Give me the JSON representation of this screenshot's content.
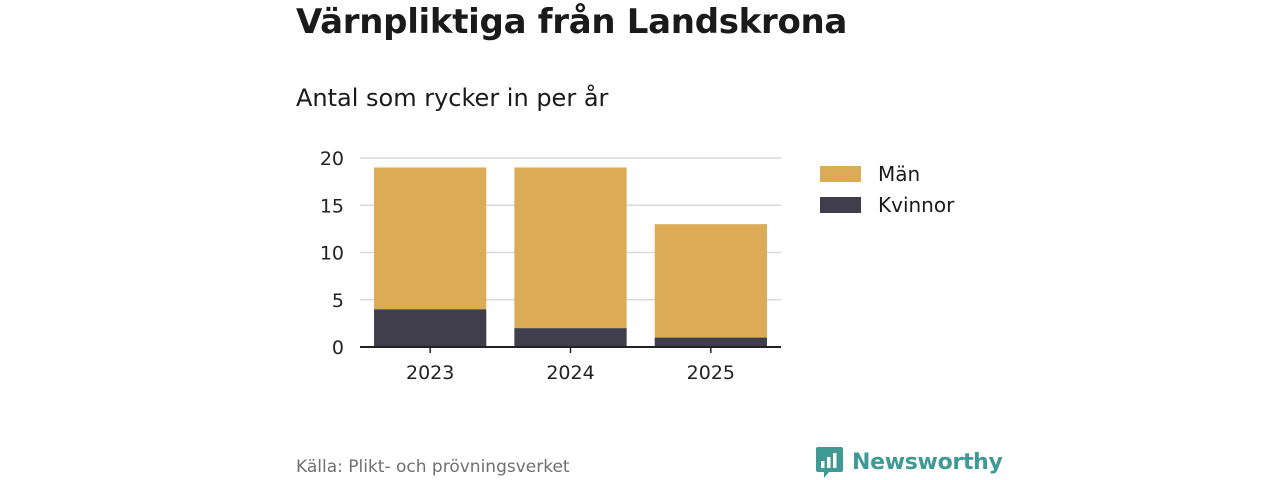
{
  "title": "Värnpliktiga från Landskrona",
  "subtitle": "Antal som rycker in per år",
  "source": "Källa: Plikt- och prövningsverket",
  "brand": "Newsworthy",
  "colors": {
    "man": "#dbab57",
    "kvinnor": "#403e4c",
    "grid": "#d9d9d9",
    "axis": "#222222",
    "brand": "#3f9a96"
  },
  "icons": {
    "brand_logo": "bar-chart-speech-bubble-icon"
  },
  "chart_data": {
    "type": "bar",
    "stacked": true,
    "categories": [
      "2023",
      "2024",
      "2025"
    ],
    "series": [
      {
        "name": "Kvinnor",
        "values": [
          4,
          2,
          1
        ]
      },
      {
        "name": "Män",
        "values": [
          15,
          17,
          12
        ]
      }
    ],
    "legend": [
      "Män",
      "Kvinnor"
    ],
    "ylim": [
      0,
      20
    ],
    "yticks": [
      0,
      5,
      10,
      15,
      20
    ],
    "grid": true,
    "legend_position": "right"
  }
}
